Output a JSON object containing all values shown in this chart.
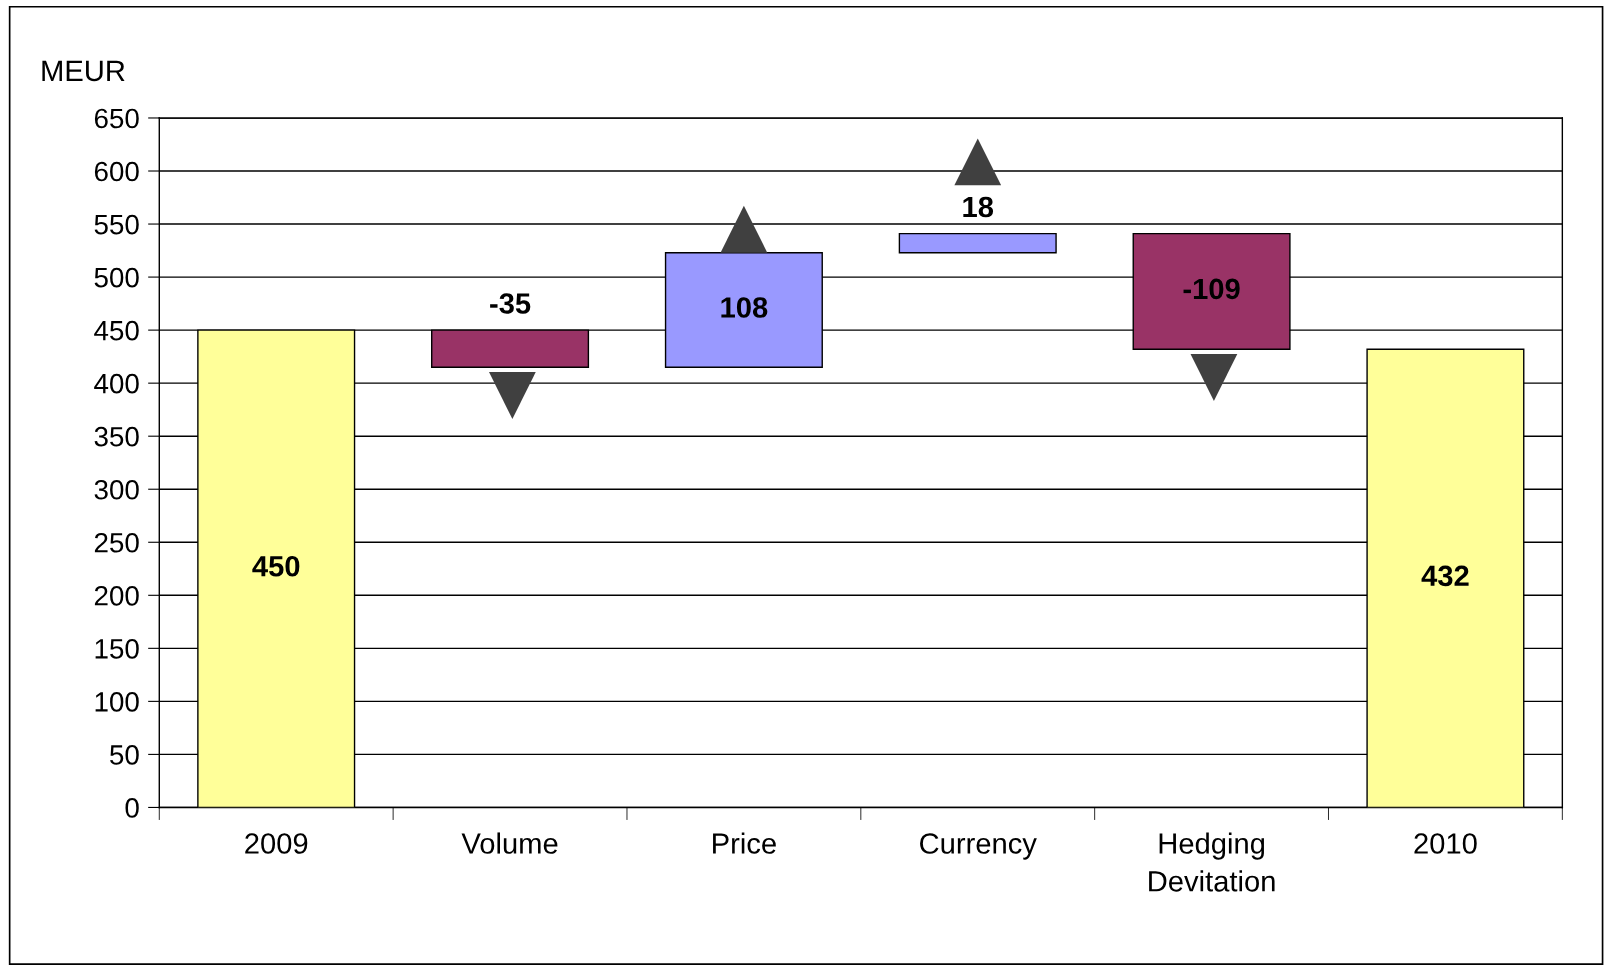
{
  "chart_data": {
    "type": "bar",
    "ylabel": "MEUR",
    "categories": [
      "2009",
      "Volume",
      "Price",
      "Currency",
      "Hedging\nDevitation",
      "2010"
    ],
    "values": [
      450,
      -35,
      108,
      18,
      -109,
      432
    ],
    "base": [
      0,
      450,
      415,
      523,
      541,
      0
    ],
    "colors": [
      "#ffff99",
      "#993366",
      "#9999ff",
      "#9999ff",
      "#993366",
      "#ffff99"
    ],
    "ylim": [
      0,
      650
    ],
    "yticks": [
      0,
      50,
      100,
      150,
      200,
      250,
      300,
      350,
      400,
      450,
      500,
      550,
      600,
      650
    ],
    "grid": "y",
    "data_labels": true
  }
}
